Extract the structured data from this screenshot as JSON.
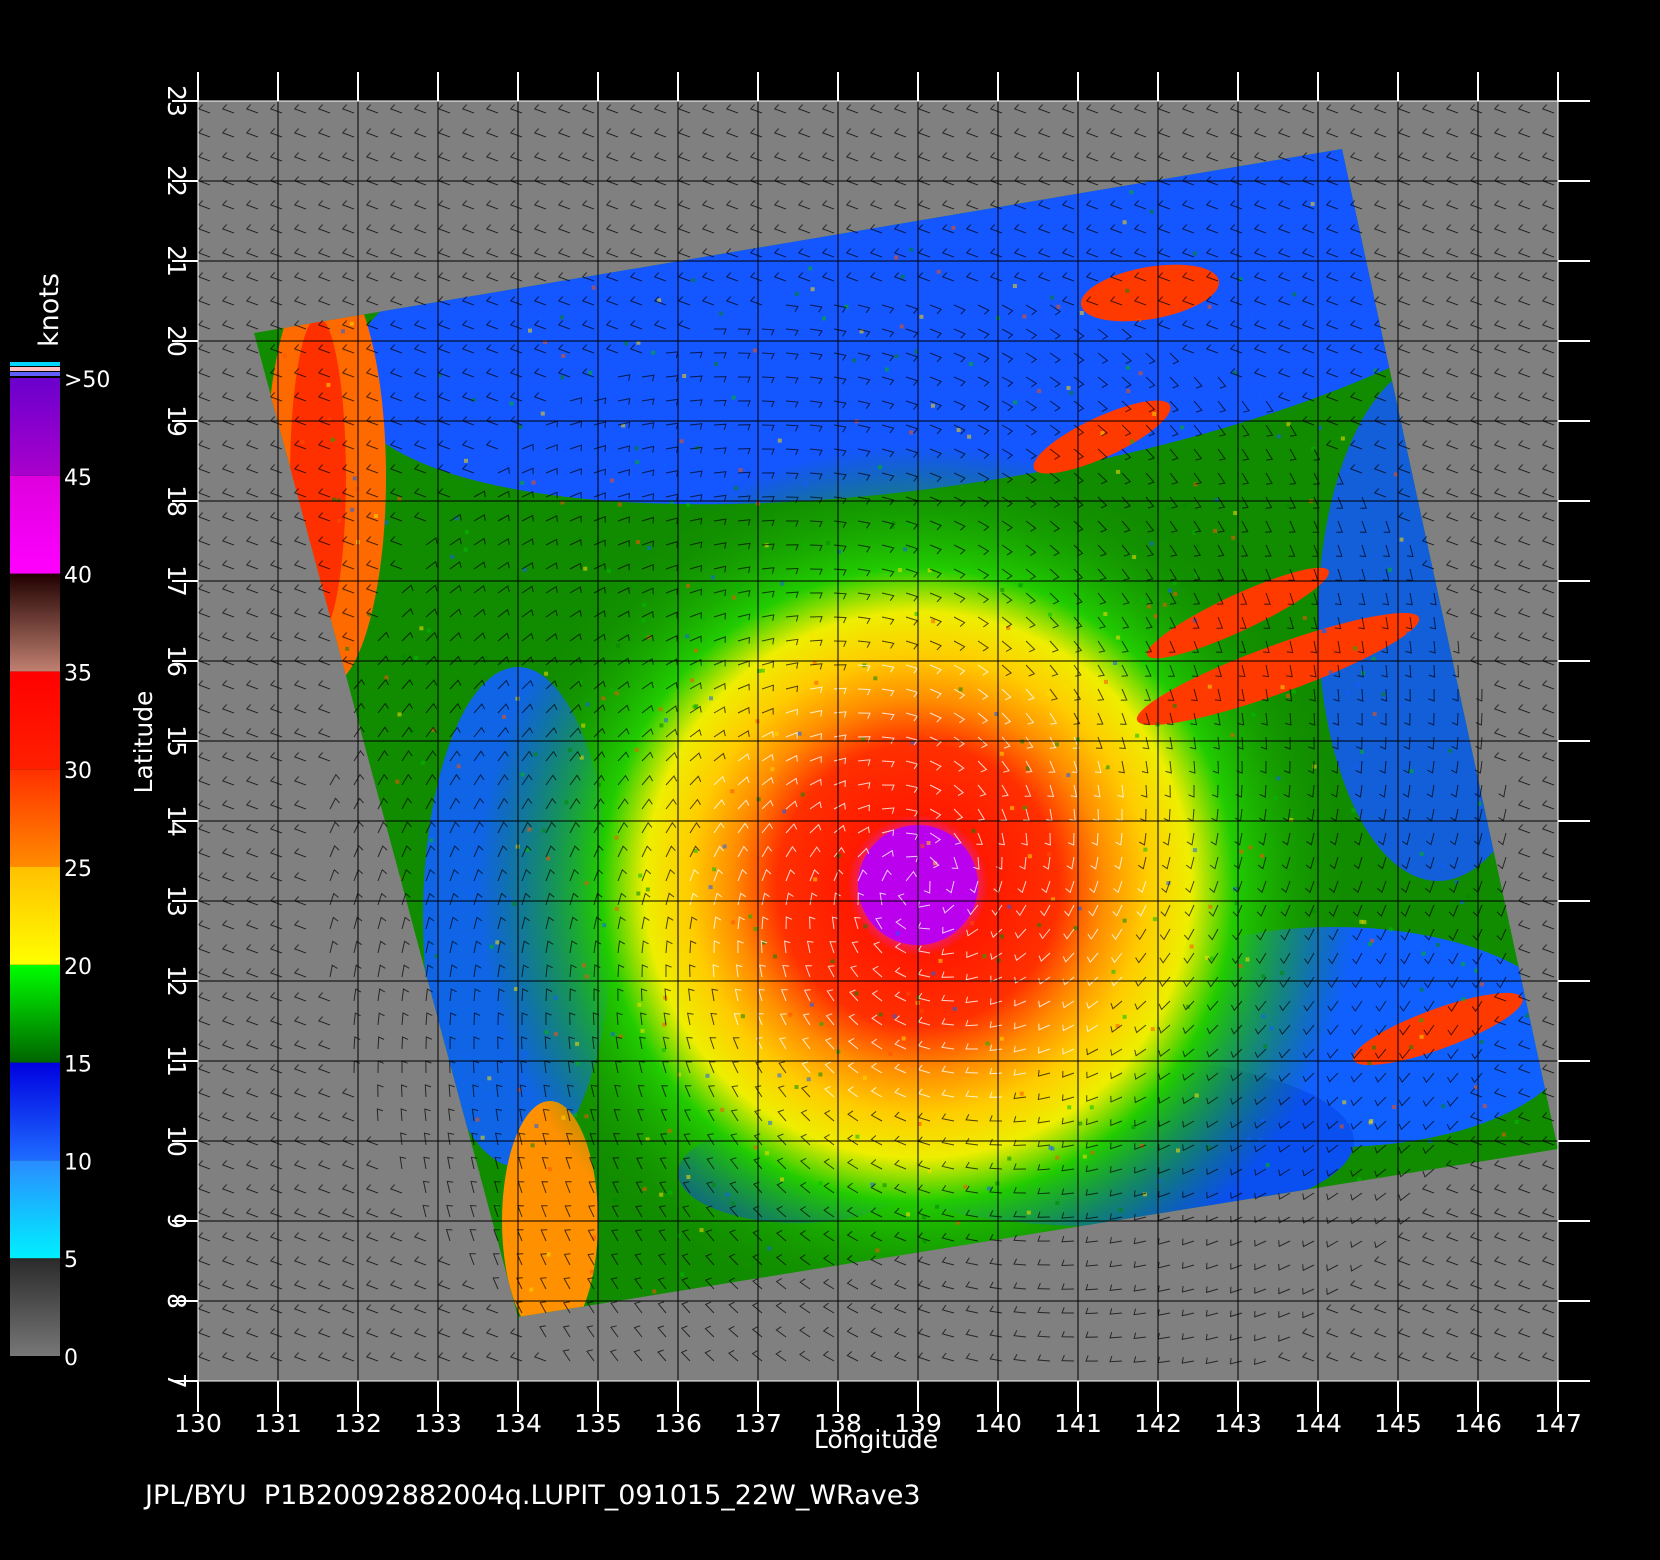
{
  "map": {
    "type": "wind-speed-map",
    "x_axis": {
      "label": "Longitude",
      "range": [
        130,
        147
      ],
      "ticks": [
        130,
        131,
        132,
        133,
        134,
        135,
        136,
        137,
        138,
        139,
        140,
        141,
        142,
        143,
        144,
        145,
        146,
        147
      ]
    },
    "y_axis": {
      "label": "Latitude",
      "range": [
        7,
        23
      ],
      "ticks": [
        7,
        8,
        9,
        10,
        11,
        12,
        13,
        14,
        15,
        16,
        17,
        18,
        19,
        20,
        21,
        22,
        23
      ]
    },
    "grid": true,
    "storm_center": {
      "lon": 139.0,
      "lat": 13.2
    },
    "swath_corners": [
      {
        "lon": 130.7,
        "lat": 20.1
      },
      {
        "lon": 144.3,
        "lat": 22.4
      },
      {
        "lon": 147.0,
        "lat": 9.9
      },
      {
        "lon": 134.0,
        "lat": 7.8
      }
    ]
  },
  "colorbar": {
    "unit_label": "knots",
    "bands": [
      {
        "from": 0,
        "to": 5,
        "colors": [
          "#777777",
          "#2a2a2a"
        ]
      },
      {
        "from": 5,
        "to": 10,
        "colors": [
          "#00f0ff",
          "#2a8cff"
        ]
      },
      {
        "from": 10,
        "to": 15,
        "colors": [
          "#1e6cff",
          "#0000e0"
        ]
      },
      {
        "from": 15,
        "to": 20,
        "colors": [
          "#006400",
          "#00ff00"
        ]
      },
      {
        "from": 20,
        "to": 25,
        "colors": [
          "#ffff00",
          "#ffc000"
        ]
      },
      {
        "from": 25,
        "to": 30,
        "colors": [
          "#ff8c00",
          "#ff3000"
        ]
      },
      {
        "from": 30,
        "to": 35,
        "colors": [
          "#ff2000",
          "#ff0000"
        ]
      },
      {
        "from": 35,
        "to": 40,
        "colors": [
          "#c08070",
          "#200000"
        ]
      },
      {
        "from": 40,
        "to": 45,
        "colors": [
          "#ff00ff",
          "#dd00dd"
        ]
      },
      {
        "from": 45,
        "to": 50,
        "colors": [
          "#aa00cc",
          "#6a00cc"
        ]
      }
    ],
    "tick_labels": [
      "0",
      "5",
      "10",
      "15",
      "20",
      "25",
      "30",
      "35",
      "40",
      "45",
      ">50"
    ]
  },
  "footer": {
    "text": "JPL/BYU  P1B20092882004q.LUPIT_091015_22W_WRave3"
  }
}
